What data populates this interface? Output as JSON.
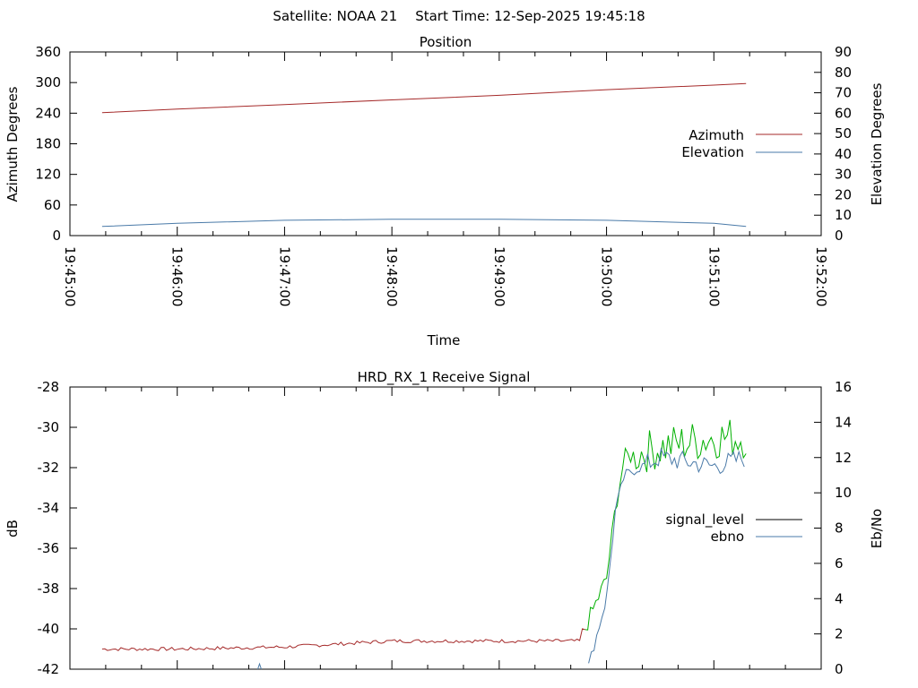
{
  "header": {
    "satellite": "Satellite: NOAA 21",
    "start_time": "Start Time: 12-Sep-2025 19:45:18"
  },
  "colors": {
    "azimuth": "#a52a2a",
    "elevation": "#4a7aa8",
    "signal_level": "#000000",
    "ebno": "#4a7aa8",
    "green": "#00b000"
  },
  "chart_data": [
    {
      "type": "line",
      "title": "Position",
      "xlabel": "Time",
      "ylabel": "Azimuth Degrees",
      "y2label": "Elevation Degrees",
      "xlim": [
        "19:45:00",
        "19:52:00"
      ],
      "x_ticks": [
        "19:45:00",
        "19:46:00",
        "19:47:00",
        "19:48:00",
        "19:49:00",
        "19:50:00",
        "19:51:00",
        "19:52:00"
      ],
      "ylim": [
        0,
        360
      ],
      "y_ticks": [
        "0",
        "60",
        "120",
        "180",
        "240",
        "300",
        "360"
      ],
      "y2lim": [
        0,
        90
      ],
      "y2_ticks": [
        "0",
        "10",
        "20",
        "30",
        "40",
        "50",
        "60",
        "70",
        "80",
        "90"
      ],
      "legend": "right",
      "series": [
        {
          "name": "Azimuth",
          "axis": "y",
          "x": [
            "19:45:18",
            "19:46:00",
            "19:47:00",
            "19:48:00",
            "19:49:00",
            "19:50:00",
            "19:51:00",
            "19:51:18"
          ],
          "values": [
            241,
            248,
            257,
            266,
            275,
            286,
            295,
            298
          ]
        },
        {
          "name": "Elevation",
          "axis": "y2",
          "x": [
            "19:45:18",
            "19:46:00",
            "19:47:00",
            "19:48:00",
            "19:49:00",
            "19:50:00",
            "19:51:00",
            "19:51:18"
          ],
          "values": [
            4.5,
            6,
            7.5,
            8,
            8,
            7.5,
            6,
            4.5
          ]
        }
      ]
    },
    {
      "type": "line",
      "title": "HRD_RX_1 Receive Signal",
      "xlabel": "",
      "ylabel": "dB",
      "y2label": "Eb/No",
      "xlim": [
        "19:45:00",
        "19:52:00"
      ],
      "ylim": [
        -42,
        -28
      ],
      "y_ticks": [
        "-42",
        "-40",
        "-38",
        "-36",
        "-34",
        "-32",
        "-30",
        "-28"
      ],
      "y2lim": [
        0,
        16
      ],
      "y2_ticks": [
        "0",
        "2",
        "4",
        "6",
        "8",
        "10",
        "12",
        "14",
        "16"
      ],
      "legend": "right",
      "series": [
        {
          "name": "signal_level",
          "axis": "y",
          "x": [
            "19:45:18",
            "19:46:00",
            "19:47:00",
            "19:48:00",
            "19:49:00",
            "19:49:45",
            "19:50:00",
            "19:50:05",
            "19:50:10",
            "19:50:30",
            "19:51:00",
            "19:51:18"
          ],
          "values": [
            -41.0,
            -41.0,
            -40.9,
            -40.6,
            -40.6,
            -40.6,
            -37.5,
            -34.0,
            -31.5,
            -31.0,
            -30.5,
            -30.5
          ]
        },
        {
          "name": "ebno",
          "axis": "y2",
          "x": [
            "19:46:45",
            "19:49:50",
            "19:50:00",
            "19:50:05",
            "19:50:10",
            "19:50:30",
            "19:51:00",
            "19:51:18"
          ],
          "values": [
            0.2,
            0.2,
            4,
            9,
            11,
            12,
            11.5,
            12
          ]
        }
      ]
    }
  ]
}
